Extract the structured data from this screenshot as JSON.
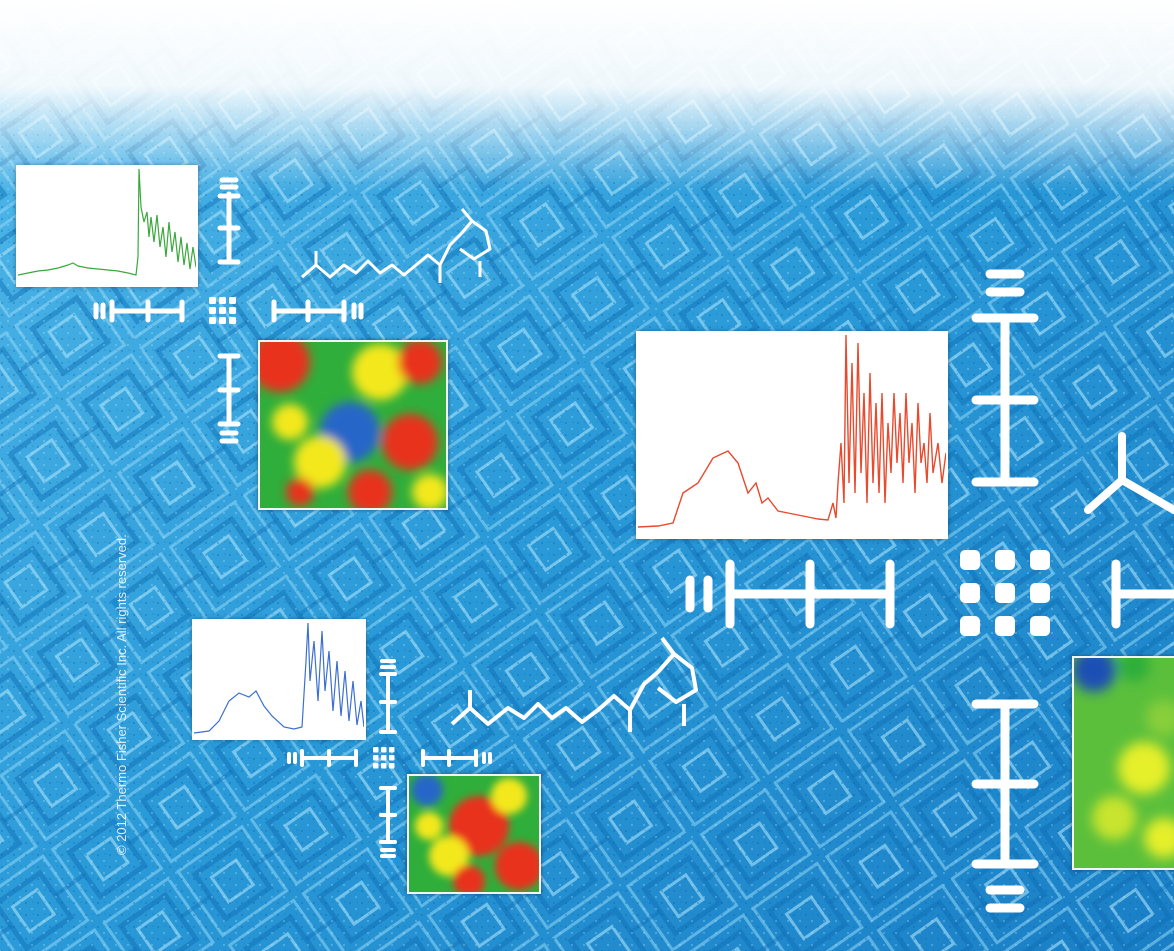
{
  "copyright": "© 2012 Thermo Fisher Scientific Inc. All rights reserved.",
  "colors": {
    "sky_top": "#ffffff",
    "circuit_blue": "#1e9fdc",
    "circuit_deep": "#0b6fb8",
    "spectrum_green": "#3aa83c",
    "spectrum_red": "#e84a2e",
    "spectrum_blue": "#3b6fd0",
    "heat_red": "#e8321e",
    "heat_yellow": "#f3e81f",
    "heat_green": "#2fae3b",
    "heat_blue": "#2566c8"
  },
  "icons": [
    "spectrum-plot-icon",
    "chemical-structure-icon",
    "hyphen-bar-icon",
    "dot-grid-icon",
    "heat-map-icon"
  ]
}
